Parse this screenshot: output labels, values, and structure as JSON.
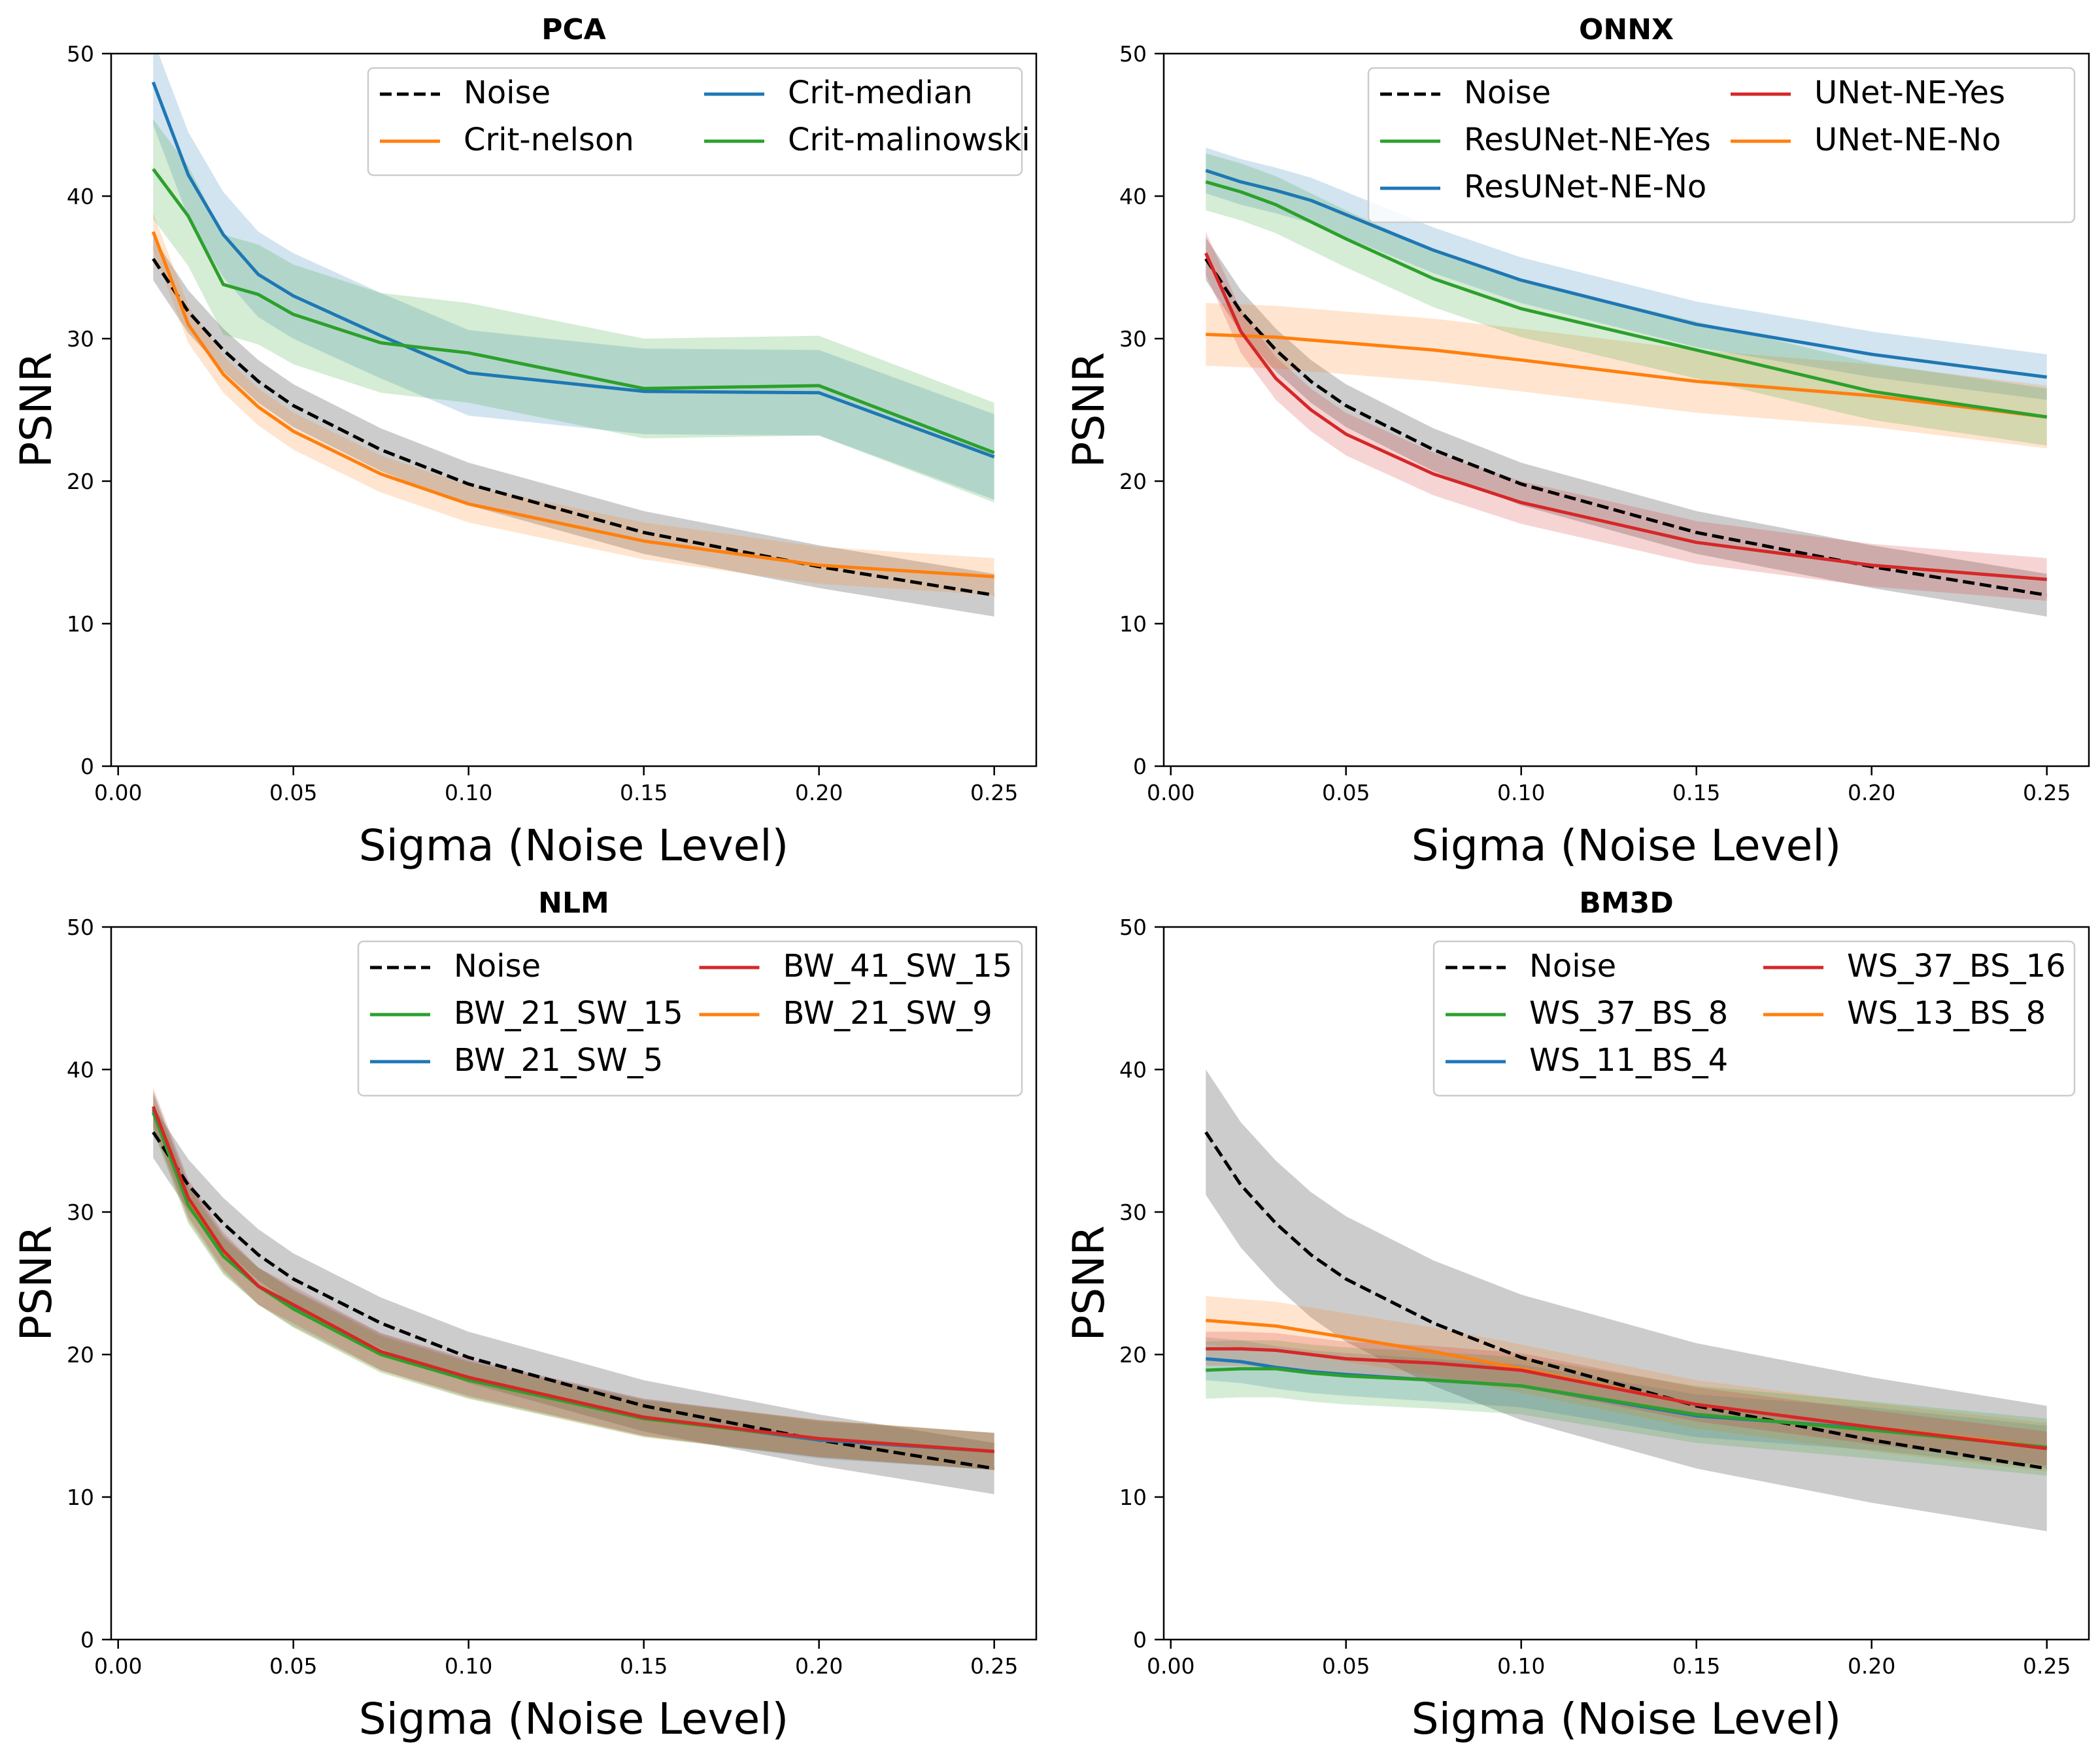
{
  "chart_data": [
    {
      "type": "line",
      "title": "PCA",
      "xlabel": "Sigma (Noise Level)",
      "ylabel": "PSNR",
      "xlim": [
        -0.002,
        0.262
      ],
      "ylim": [
        0,
        50
      ],
      "xticks": [
        "0.00",
        "0.05",
        "0.10",
        "0.15",
        "0.20",
        "0.25"
      ],
      "yticks": [
        "0",
        "10",
        "20",
        "30",
        "40",
        "50"
      ],
      "legend_position": "upper right",
      "legend_columns": 2,
      "x": [
        0.01,
        0.02,
        0.03,
        0.04,
        0.05,
        0.075,
        0.1,
        0.15,
        0.2,
        0.25
      ],
      "series": [
        {
          "name": "Noise",
          "color": "#000000",
          "dashed": true,
          "values": [
            35.6,
            31.9,
            29.2,
            27.0,
            25.3,
            22.2,
            19.8,
            16.4,
            14.0,
            12.0
          ],
          "band": 1.5
        },
        {
          "name": "Crit-median",
          "color": "#1f77b4",
          "dashed": false,
          "values": [
            48.0,
            41.5,
            37.3,
            34.5,
            33.0,
            30.2,
            27.6,
            26.3,
            26.2,
            21.7
          ],
          "band": 3.0
        },
        {
          "name": "Crit-nelson",
          "color": "#ff7f0e",
          "dashed": false,
          "values": [
            37.5,
            31.0,
            27.5,
            25.2,
            23.5,
            20.5,
            18.4,
            15.8,
            14.1,
            13.3
          ],
          "band": 1.3
        },
        {
          "name": "Crit-malinowski",
          "color": "#2ca02c",
          "dashed": false,
          "values": [
            41.9,
            38.6,
            33.8,
            33.1,
            31.7,
            29.7,
            29.0,
            26.5,
            26.7,
            22.0
          ],
          "band": 3.5
        }
      ],
      "legend_order": [
        0,
        2,
        1,
        3
      ]
    },
    {
      "type": "line",
      "title": "ONNX",
      "xlabel": "Sigma (Noise Level)",
      "ylabel": "PSNR",
      "xlim": [
        -0.002,
        0.262
      ],
      "ylim": [
        0,
        50
      ],
      "xticks": [
        "0.00",
        "0.05",
        "0.10",
        "0.15",
        "0.20",
        "0.25"
      ],
      "yticks": [
        "0",
        "10",
        "20",
        "30",
        "40",
        "50"
      ],
      "legend_position": "upper right",
      "legend_columns": 2,
      "x": [
        0.01,
        0.02,
        0.03,
        0.04,
        0.05,
        0.075,
        0.1,
        0.15,
        0.2,
        0.25
      ],
      "series": [
        {
          "name": "Noise",
          "color": "#000000",
          "dashed": true,
          "values": [
            35.6,
            31.9,
            29.2,
            27.0,
            25.3,
            22.2,
            19.8,
            16.4,
            14.0,
            12.0
          ],
          "band": 1.5
        },
        {
          "name": "ResUNet-NE-No",
          "color": "#1f77b4",
          "dashed": false,
          "values": [
            41.8,
            41.0,
            40.4,
            39.7,
            38.7,
            36.2,
            34.1,
            31.0,
            28.9,
            27.3
          ],
          "band": 1.6
        },
        {
          "name": "UNet-NE-No",
          "color": "#ff7f0e",
          "dashed": false,
          "values": [
            30.3,
            30.2,
            30.1,
            29.9,
            29.7,
            29.2,
            28.5,
            27.0,
            26.0,
            24.5
          ],
          "band": 2.2
        },
        {
          "name": "ResUNet-NE-Yes",
          "color": "#2ca02c",
          "dashed": false,
          "values": [
            41.0,
            40.3,
            39.4,
            38.2,
            37.0,
            34.2,
            32.1,
            29.2,
            26.3,
            24.5
          ],
          "band": 2.0
        },
        {
          "name": "UNet-NE-Yes",
          "color": "#d62728",
          "dashed": false,
          "values": [
            36.0,
            30.5,
            27.2,
            25.0,
            23.3,
            20.5,
            18.5,
            15.7,
            14.1,
            13.1
          ],
          "band": 1.5
        }
      ],
      "legend_order": [
        0,
        3,
        1,
        4,
        2
      ]
    },
    {
      "type": "line",
      "title": "NLM",
      "xlabel": "Sigma (Noise Level)",
      "ylabel": "PSNR",
      "xlim": [
        -0.002,
        0.262
      ],
      "ylim": [
        0,
        50
      ],
      "xticks": [
        "0.00",
        "0.05",
        "0.10",
        "0.15",
        "0.20",
        "0.25"
      ],
      "yticks": [
        "0",
        "10",
        "20",
        "30",
        "40",
        "50"
      ],
      "legend_position": "upper right",
      "legend_columns": 2,
      "x": [
        0.01,
        0.02,
        0.03,
        0.04,
        0.05,
        0.075,
        0.1,
        0.15,
        0.2,
        0.25
      ],
      "series": [
        {
          "name": "Noise",
          "color": "#000000",
          "dashed": true,
          "values": [
            35.6,
            31.9,
            29.2,
            27.0,
            25.3,
            22.2,
            19.8,
            16.4,
            14.0,
            12.0
          ],
          "band": 1.8
        },
        {
          "name": "BW_21_SW_5",
          "color": "#1f77b4",
          "dashed": false,
          "values": [
            37.2,
            30.8,
            27.1,
            24.8,
            23.3,
            20.2,
            18.3,
            15.6,
            14.0,
            13.2
          ],
          "band": 1.3
        },
        {
          "name": "BW_21_SW_9",
          "color": "#ff7f0e",
          "dashed": false,
          "values": [
            37.0,
            30.6,
            27.0,
            24.8,
            23.2,
            20.1,
            18.2,
            15.5,
            14.1,
            13.2
          ],
          "band": 1.3
        },
        {
          "name": "BW_21_SW_15",
          "color": "#2ca02c",
          "dashed": false,
          "values": [
            37.0,
            30.5,
            26.9,
            24.8,
            23.2,
            20.0,
            18.2,
            15.5,
            14.1,
            13.2
          ],
          "band": 1.3
        },
        {
          "name": "BW_41_SW_15",
          "color": "#d62728",
          "dashed": false,
          "values": [
            37.4,
            31.0,
            27.3,
            24.8,
            23.5,
            20.2,
            18.4,
            15.6,
            14.1,
            13.2
          ],
          "band": 1.3
        }
      ],
      "legend_order": [
        0,
        3,
        1,
        4,
        2
      ]
    },
    {
      "type": "line",
      "title": "BM3D",
      "xlabel": "Sigma (Noise Level)",
      "ylabel": "PSNR",
      "xlim": [
        -0.002,
        0.262
      ],
      "ylim": [
        0,
        50
      ],
      "xticks": [
        "0.00",
        "0.05",
        "0.10",
        "0.15",
        "0.20",
        "0.25"
      ],
      "yticks": [
        "0",
        "10",
        "20",
        "30",
        "40",
        "50"
      ],
      "legend_position": "upper right",
      "legend_columns": 2,
      "x": [
        0.01,
        0.02,
        0.03,
        0.04,
        0.05,
        0.075,
        0.1,
        0.15,
        0.2,
        0.25
      ],
      "series": [
        {
          "name": "Noise",
          "color": "#000000",
          "dashed": true,
          "values": [
            35.6,
            31.9,
            29.2,
            27.0,
            25.3,
            22.2,
            19.8,
            16.4,
            14.0,
            12.0
          ],
          "band": 4.4
        },
        {
          "name": "WS_11_BS_4",
          "color": "#1f77b4",
          "dashed": false,
          "values": [
            19.7,
            19.5,
            19.1,
            18.8,
            18.6,
            18.2,
            17.8,
            15.7,
            14.8,
            13.5
          ],
          "band": 1.5
        },
        {
          "name": "WS_13_BS_8",
          "color": "#ff7f0e",
          "dashed": false,
          "values": [
            22.4,
            22.2,
            22.0,
            21.6,
            21.2,
            20.2,
            19.0,
            16.5,
            14.9,
            13.5
          ],
          "band": 1.7
        },
        {
          "name": "WS_37_BS_8",
          "color": "#2ca02c",
          "dashed": false,
          "values": [
            18.9,
            19.0,
            19.0,
            18.7,
            18.5,
            18.2,
            17.8,
            15.8,
            14.7,
            13.5
          ],
          "band": 2.0
        },
        {
          "name": "WS_37_BS_16",
          "color": "#d62728",
          "dashed": false,
          "values": [
            20.4,
            20.4,
            20.3,
            20.0,
            19.7,
            19.4,
            18.9,
            16.5,
            14.9,
            13.4
          ],
          "band": 1.2
        }
      ],
      "legend_order": [
        0,
        3,
        1,
        4,
        2
      ]
    }
  ]
}
